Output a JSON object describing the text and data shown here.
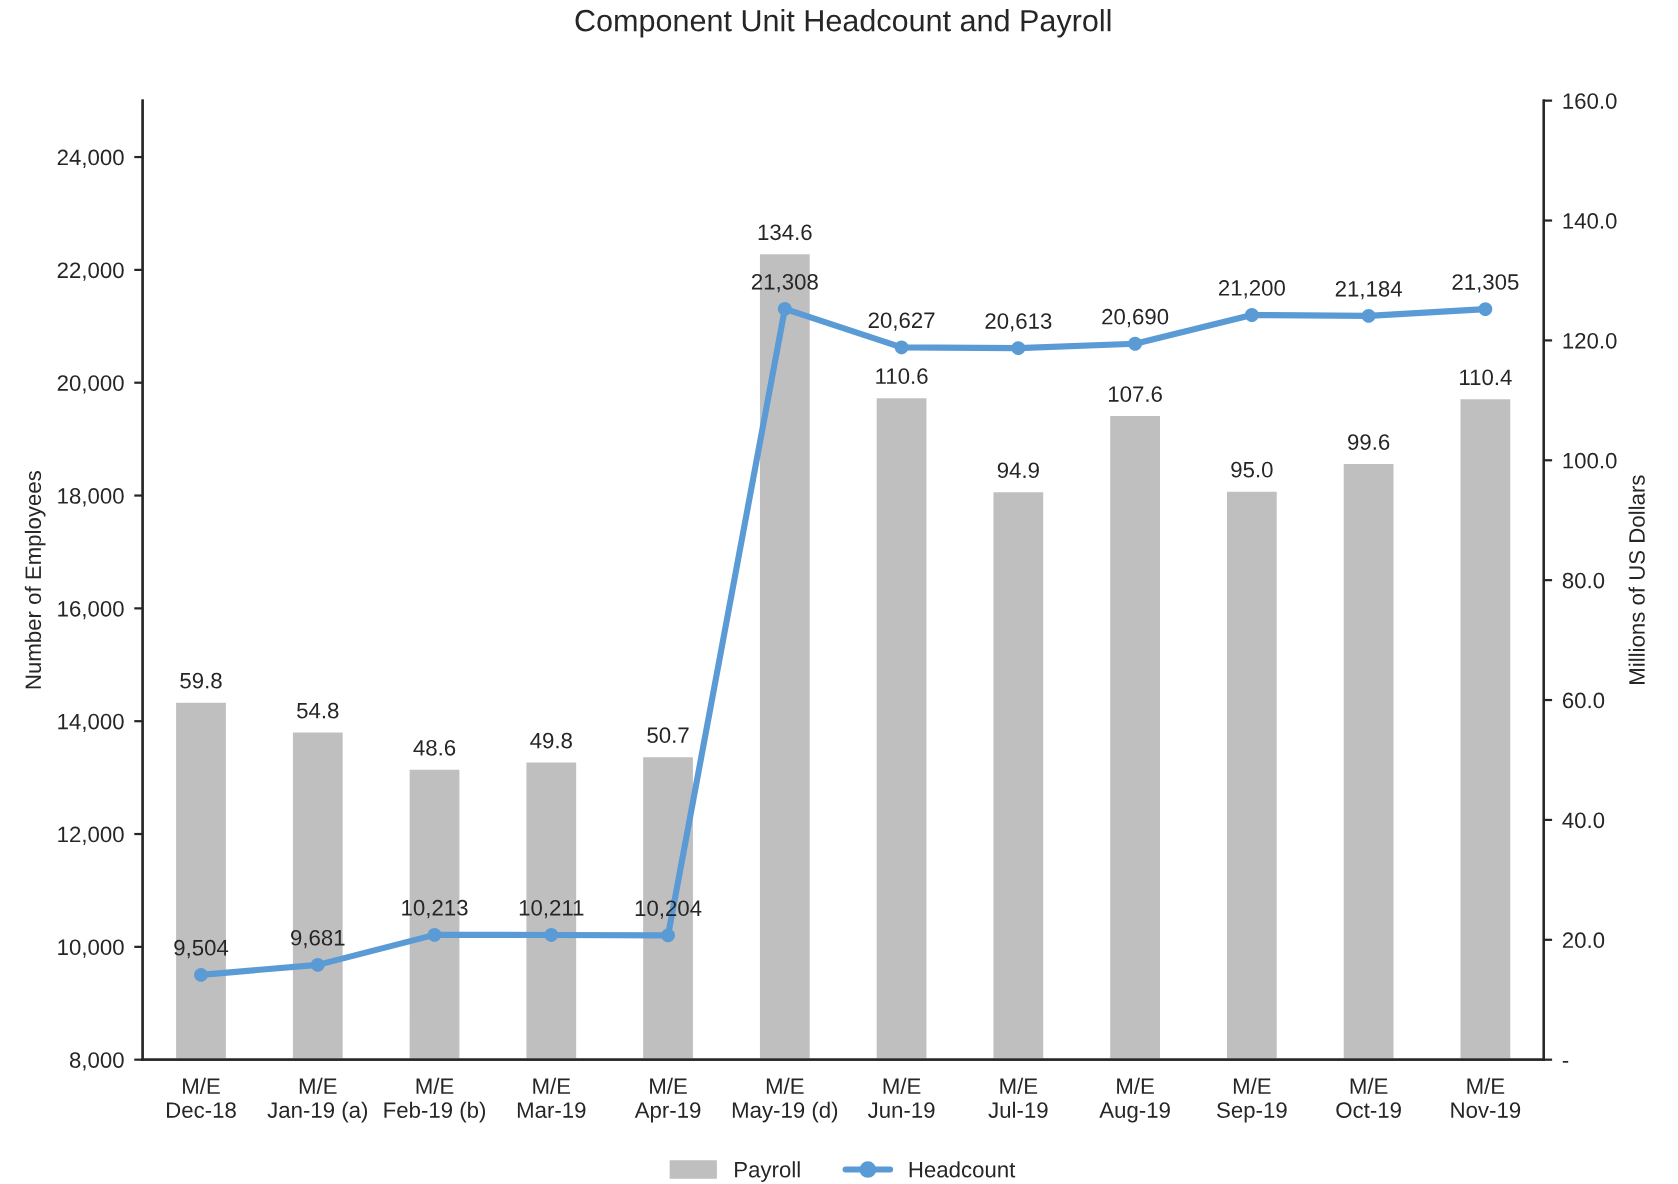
{
  "chart_data": {
    "type": "bar",
    "title": "Component Unit Headcount and Payroll",
    "ylabel": "Number of Employees",
    "y2label": "Millions of US Dollars",
    "categories": [
      "M/E\nDec-18",
      "M/E\nJan-19 (a)",
      "M/E\nFeb-19 (b)",
      "M/E\nMar-19",
      "M/E\nApr-19",
      "M/E\nMay-19 (d)",
      "M/E\nJun-19",
      "M/E\nJul-19",
      "M/E\nAug-19",
      "M/E\nSep-19",
      "M/E\nOct-19",
      "M/E\nNov-19"
    ],
    "series": [
      {
        "name": "Payroll",
        "axis": "y2",
        "color": "#bfbfbf",
        "values": [
          59.8,
          54.8,
          48.6,
          49.8,
          50.7,
          134.6,
          110.6,
          94.9,
          107.6,
          95.0,
          99.6,
          110.4
        ],
        "value_labels": [
          "59.8",
          "54.8",
          "48.6",
          "49.8",
          "50.7",
          "134.6",
          "110.6",
          "94.9",
          "107.6",
          "95.0",
          "99.6",
          "110.4"
        ]
      },
      {
        "name": "Headcount",
        "type": "line",
        "axis": "y",
        "color": "#5b9bd5",
        "marker": "circle",
        "values": [
          9504,
          9681,
          10213,
          10211,
          10204,
          21308,
          20627,
          20613,
          20690,
          21200,
          21184,
          21305
        ],
        "value_labels": [
          "9,504",
          "9,681",
          "10,213",
          "10,211",
          "10,204",
          "21,308",
          "20,627",
          "20,613",
          "20,690",
          "21,200",
          "21,184",
          "21,305"
        ]
      }
    ],
    "ylim": [
      8000,
      25000
    ],
    "yticks": [
      {
        "value": 8000,
        "label": "8,000"
      },
      {
        "value": 10000,
        "label": "10,000"
      },
      {
        "value": 12000,
        "label": "12,000"
      },
      {
        "value": 14000,
        "label": "14,000"
      },
      {
        "value": 16000,
        "label": "16,000"
      },
      {
        "value": 18000,
        "label": "18,000"
      },
      {
        "value": 20000,
        "label": "20,000"
      },
      {
        "value": 22000,
        "label": "22,000"
      },
      {
        "value": 24000,
        "label": "24,000"
      }
    ],
    "y2lim": [
      0,
      160
    ],
    "y2ticks": [
      {
        "value": 0,
        "label": "-"
      },
      {
        "value": 20,
        "label": "20.0"
      },
      {
        "value": 40,
        "label": "40.0"
      },
      {
        "value": 60,
        "label": "60.0"
      },
      {
        "value": 80,
        "label": "80.0"
      },
      {
        "value": 100,
        "label": "100.0"
      },
      {
        "value": 120,
        "label": "120.0"
      },
      {
        "value": 140,
        "label": "140.0"
      },
      {
        "value": 160,
        "label": "160.0"
      }
    ],
    "grid": false,
    "legend": "bottom"
  }
}
